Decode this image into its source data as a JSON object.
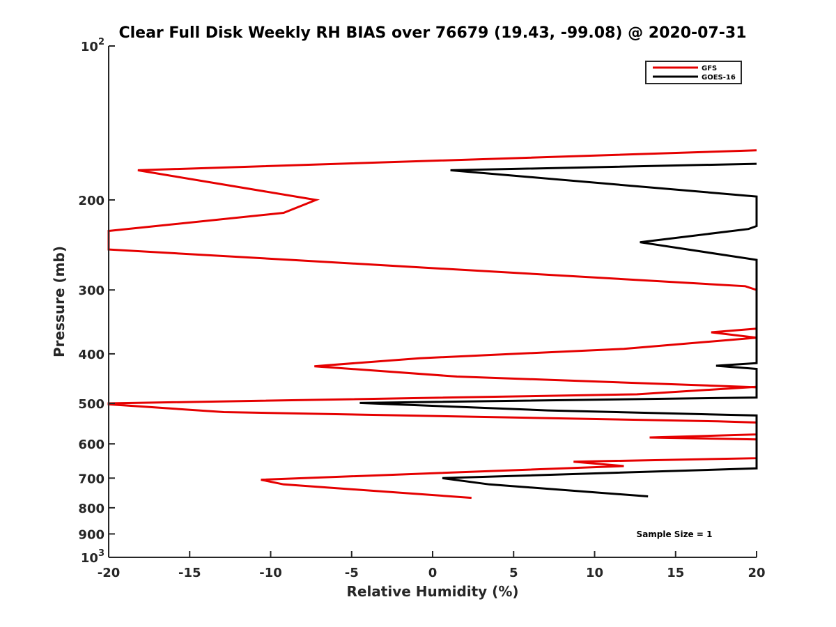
{
  "chart_data": {
    "type": "line",
    "title": "Clear Full Disk Weekly RH BIAS over 76679 (19.43, -99.08) @ 2020-07-31",
    "xlabel": "Relative Humidity (%)",
    "ylabel": "Pressure (mb)",
    "xlim": [
      -20,
      20
    ],
    "ylim": [
      100,
      1000
    ],
    "yscale": "log",
    "yreversed": true,
    "grid": false,
    "legend_position": "top-right",
    "x_ticks": [
      -20,
      -15,
      -10,
      -5,
      0,
      5,
      10,
      15,
      20
    ],
    "x_tick_labels": [
      "-20",
      "-15",
      "-10",
      "-5",
      "0",
      "5",
      "10",
      "15",
      "20"
    ],
    "y_ticks": [
      100,
      200,
      300,
      400,
      500,
      600,
      700,
      800,
      900,
      1000
    ],
    "y_tick_labels": [
      {
        "base": "10",
        "exp": "2"
      },
      {
        "base": "200",
        "exp": ""
      },
      {
        "base": "300",
        "exp": ""
      },
      {
        "base": "400",
        "exp": ""
      },
      {
        "base": "500",
        "exp": ""
      },
      {
        "base": "600",
        "exp": ""
      },
      {
        "base": "700",
        "exp": ""
      },
      {
        "base": "800",
        "exp": ""
      },
      {
        "base": "900",
        "exp": ""
      },
      {
        "base": "10",
        "exp": "3"
      }
    ],
    "series": [
      {
        "name": "GFS",
        "color": "#e50000",
        "points": [
          [
            20,
            160
          ],
          [
            -18.2,
            175
          ],
          [
            -7.2,
            200
          ],
          [
            -9.2,
            212
          ],
          [
            -20,
            230
          ],
          [
            -20,
            250
          ],
          [
            -8.8,
            262
          ],
          [
            19.3,
            295
          ],
          [
            20,
            300
          ],
          [
            20,
            357
          ],
          [
            17.2,
            363
          ],
          [
            20,
            372
          ],
          [
            11.8,
            391
          ],
          [
            -0.8,
            408
          ],
          [
            -7.3,
            423
          ],
          [
            1.5,
            443
          ],
          [
            20,
            465
          ],
          [
            20,
            464
          ],
          [
            12.6,
            480
          ],
          [
            -20,
            500
          ],
          [
            -20,
            502
          ],
          [
            -12.9,
            520
          ],
          [
            17.6,
            542
          ],
          [
            20,
            545
          ],
          [
            20,
            575
          ],
          [
            13.4,
            583
          ],
          [
            20,
            588
          ],
          [
            20,
            640
          ],
          [
            8.7,
            650
          ],
          [
            11.8,
            663
          ],
          [
            -10.6,
            705
          ],
          [
            -9.2,
            720
          ],
          [
            2.4,
            765
          ]
        ]
      },
      {
        "name": "GOES-16",
        "color": "#000000",
        "points": [
          [
            20,
            170
          ],
          [
            1.1,
            175
          ],
          [
            20,
            197
          ],
          [
            20,
            225
          ],
          [
            19.5,
            228
          ],
          [
            12.8,
            242
          ],
          [
            20,
            262
          ],
          [
            20,
            417
          ],
          [
            17.5,
            422
          ],
          [
            20,
            428
          ],
          [
            20,
            487
          ],
          [
            -4.5,
            499
          ],
          [
            7.1,
            516
          ],
          [
            20,
            528
          ],
          [
            20,
            670
          ],
          [
            0.6,
            700
          ],
          [
            3.5,
            720
          ],
          [
            13.3,
            760
          ]
        ]
      }
    ],
    "annotations": [
      "Sample Size = 1"
    ],
    "colors": {
      "gfs": "#e50000",
      "goes16": "#000000"
    }
  }
}
